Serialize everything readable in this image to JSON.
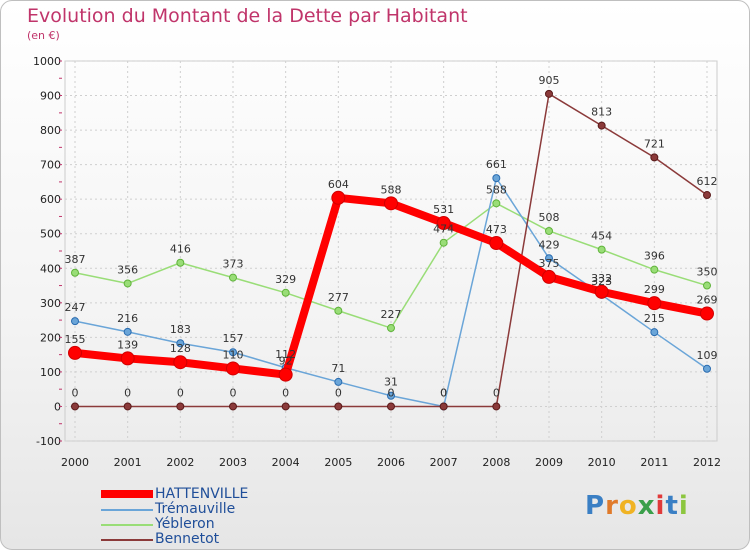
{
  "header": {
    "title": "Evolution du Montant de la Dette par Habitant",
    "subtitle": "(en €)"
  },
  "brand": {
    "text": "Proxiti",
    "letter_colors": [
      "#3a7fc4",
      "#e07a2a",
      "#f0b323",
      "#3a9f4a",
      "#e03a3a",
      "#3a7fc4",
      "#8cc63f"
    ]
  },
  "chart_data": {
    "type": "line",
    "x": [
      "2000",
      "2001",
      "2002",
      "2003",
      "2004",
      "2005",
      "2006",
      "2007",
      "2008",
      "2009",
      "2010",
      "2011",
      "2012"
    ],
    "ylim": [
      -100,
      1000
    ],
    "yticks": [
      "-100",
      "0",
      "100",
      "200",
      "300",
      "400",
      "500",
      "600",
      "700",
      "800",
      "900",
      "1000"
    ],
    "grid": true,
    "legend_position": "bottom-left",
    "series": [
      {
        "name": "HATTENVILLE",
        "color": "#ff0000",
        "x": [
          "2000",
          "2001",
          "2002",
          "2003",
          "2004",
          "2005",
          "2006",
          "2007",
          "2008",
          "2009",
          "2010",
          "2011",
          "2012"
        ],
        "values": [
          155,
          139,
          128,
          110,
          92,
          604,
          588,
          531,
          473,
          375,
          332,
          299,
          269
        ],
        "labels": [
          "155",
          "139",
          "128",
          "110",
          "92",
          "604",
          "588",
          "531",
          "473",
          "375",
          "332",
          "299",
          "269"
        ]
      },
      {
        "name": "Trémauville",
        "color": "#6aa5d8",
        "x": [
          "2000",
          "2001",
          "2002",
          "2003",
          "2004",
          "2005",
          "2006",
          "2007",
          "2008",
          "2009",
          "2010",
          "2011",
          "2012"
        ],
        "values": [
          247,
          216,
          183,
          157,
          112,
          71,
          31,
          0,
          661,
          429,
          323,
          215,
          109
        ],
        "labels": [
          "247",
          "216",
          "183",
          "157",
          "112",
          "71",
          "31",
          "0",
          "661",
          "429",
          "323",
          "215",
          "109"
        ]
      },
      {
        "name": "Yébleron",
        "color": "#99dd77",
        "x": [
          "2000",
          "2001",
          "2002",
          "2003",
          "2004",
          "2005",
          "2006",
          "2007",
          "2008",
          "2009",
          "2010",
          "2011",
          "2012"
        ],
        "values": [
          387,
          356,
          416,
          373,
          329,
          277,
          227,
          474,
          588,
          508,
          454,
          396,
          350
        ],
        "labels": [
          "387",
          "356",
          "416",
          "373",
          "329",
          "277",
          "227",
          "474",
          "588",
          "508",
          "454",
          "396",
          "350"
        ]
      },
      {
        "name": "Bennetot",
        "color": "#8b3a3a",
        "x": [
          "2000",
          "2001",
          "2002",
          "2003",
          "2004",
          "2005",
          "2006",
          "2007",
          "2008",
          "2009",
          "2010",
          "2011",
          "2012"
        ],
        "values": [
          0,
          0,
          0,
          0,
          0,
          0,
          0,
          0,
          0,
          905,
          813,
          721,
          612
        ],
        "labels": [
          "0",
          "0",
          "0",
          "0",
          "0",
          "0",
          "0",
          "0",
          "0",
          "905",
          "813",
          "721",
          "612"
        ]
      }
    ]
  }
}
